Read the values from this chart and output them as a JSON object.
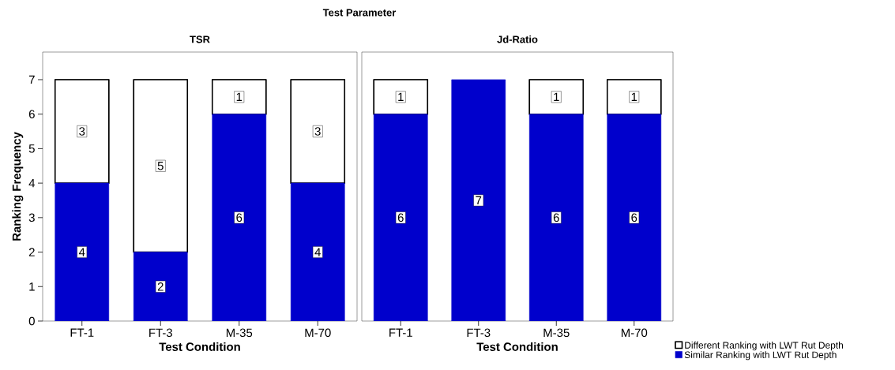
{
  "chart_data": [
    {
      "type": "bar",
      "title": "TSR",
      "annotations": [
        "Test Parameter"
      ],
      "xlabel": "Test Condition",
      "ylabel": "Ranking Frequency",
      "categories": [
        "FT-1",
        "FT-3",
        "M-35",
        "M-70"
      ],
      "stacked": true,
      "ylim": [
        0,
        7.8
      ],
      "yticks": [
        0,
        1,
        2,
        3,
        4,
        5,
        6,
        7
      ],
      "series": [
        {
          "color": "#0000cc",
          "values": [
            4,
            2,
            6,
            4
          ],
          "value_labels": [
            "4",
            "2",
            "6",
            "4"
          ]
        },
        {
          "color": "#000000",
          "values": [
            3,
            5,
            1,
            3
          ],
          "value_labels": [
            "3",
            "5",
            "1",
            "3"
          ]
        }
      ]
    },
    {
      "type": "bar",
      "title": "Jd-Ratio",
      "xlabel": "Test Condition",
      "categories": [
        "FT-1",
        "FT-3",
        "M-35",
        "M-70"
      ],
      "stacked": true,
      "ylim": [
        0,
        7.8
      ],
      "tick_labels": "x",
      "legend": "bottom right",
      "series": [
        {
          "name": "Similar Ranking with LWT Rut Depth",
          "color": "#0000cc",
          "values": [
            6,
            7,
            6,
            6
          ],
          "value_labels": [
            "6",
            "7",
            "6",
            "6"
          ]
        },
        {
          "name": "Different Ranking with LWT Rut Depth",
          "color": "#000000",
          "values": [
            1,
            0,
            1,
            1
          ],
          "value_labels": [
            "1",
            null,
            "1",
            "1"
          ]
        }
      ]
    }
  ]
}
